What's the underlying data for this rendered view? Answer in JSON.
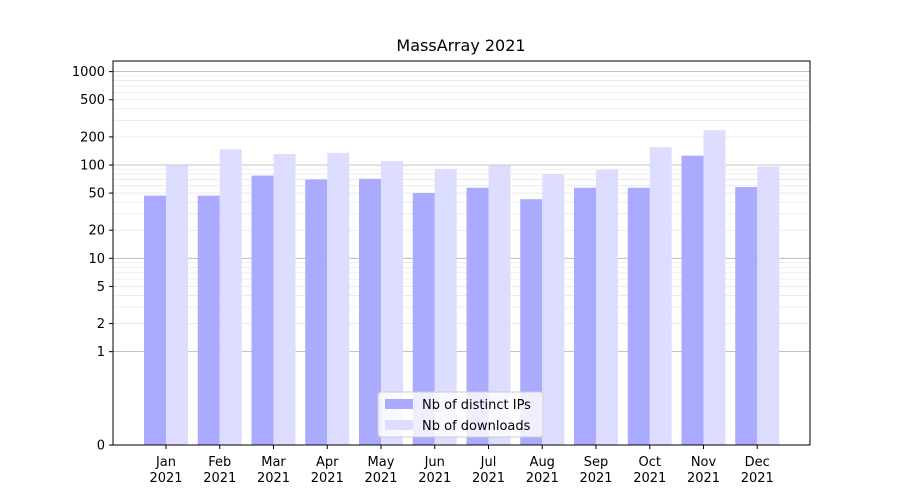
{
  "chart_data": {
    "type": "bar",
    "title": "MassArray 2021",
    "xlabel": "",
    "ylabel": "",
    "y_scale": "symlog",
    "ylim": [
      0,
      1300
    ],
    "y_ticks": [
      0,
      1,
      2,
      5,
      10,
      20,
      50,
      100,
      200,
      500,
      1000
    ],
    "y_tick_labels": [
      "0",
      "1",
      "2",
      "5",
      "10",
      "20",
      "50",
      "100",
      "200",
      "500",
      "1000"
    ],
    "grid": true,
    "legend_position": "bottom-center",
    "categories": [
      "Jan\n2021",
      "Feb\n2021",
      "Mar\n2021",
      "Apr\n2021",
      "May\n2021",
      "Jun\n2021",
      "Jul\n2021",
      "Aug\n2021",
      "Sep\n2021",
      "Oct\n2021",
      "Nov\n2021",
      "Dec\n2021"
    ],
    "series": [
      {
        "name": "Nb of distinct IPs",
        "color": "#aaaaff",
        "values": [
          47,
          47,
          77,
          70,
          71,
          50,
          57,
          43,
          57,
          57,
          126,
          58
        ]
      },
      {
        "name": "Nb of downloads",
        "color": "#ddddff",
        "values": [
          99,
          147,
          131,
          135,
          110,
          90,
          99,
          80,
          89,
          155,
          236,
          96
        ]
      }
    ]
  }
}
